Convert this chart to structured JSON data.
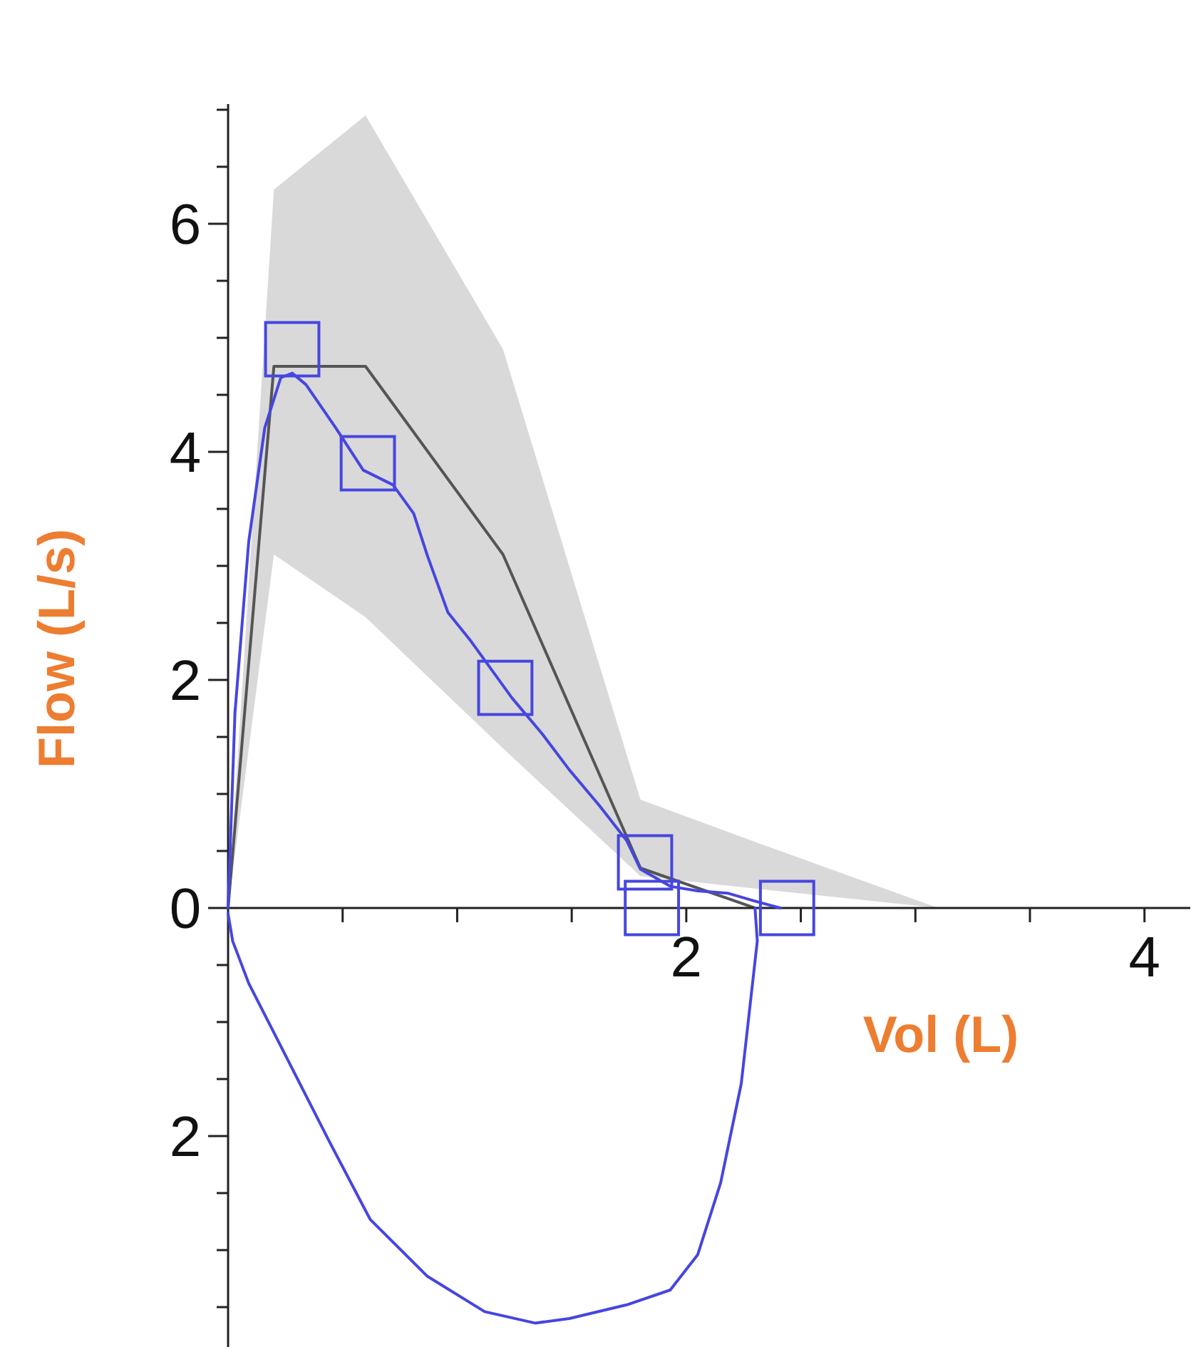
{
  "chart_data": {
    "type": "line",
    "xlabel": "Vol (L)",
    "ylabel": "Flow (L/s)",
    "xlim": [
      0,
      4.2
    ],
    "ylim": [
      -3.85,
      7.05
    ],
    "xticks": [
      {
        "value": 0.5,
        "label": null
      },
      {
        "value": 1,
        "label": null
      },
      {
        "value": 1.5,
        "label": null
      },
      2,
      {
        "value": 2.5,
        "label": null
      },
      {
        "value": 3,
        "label": null
      },
      {
        "value": 3.5,
        "label": null
      },
      4
    ],
    "yticks": [
      {
        "value": -3.5,
        "label": null
      },
      {
        "value": -3,
        "label": null
      },
      {
        "value": -2.5,
        "label": null
      },
      {
        "value": -2,
        "label": "2"
      },
      {
        "value": -1.5,
        "label": null
      },
      {
        "value": -1,
        "label": null
      },
      {
        "value": -0.5,
        "label": null
      },
      0,
      {
        "value": 0.5,
        "label": null
      },
      {
        "value": 1,
        "label": null
      },
      {
        "value": 1.5,
        "label": null
      },
      2,
      {
        "value": 2.5,
        "label": null
      },
      {
        "value": 3,
        "label": null
      },
      {
        "value": 3.5,
        "label": null
      },
      4,
      {
        "value": 4.5,
        "label": null
      },
      {
        "value": 5,
        "label": null
      },
      {
        "value": 5.5,
        "label": null
      },
      6,
      {
        "value": 6.5,
        "label": null
      },
      {
        "value": 7,
        "label": null
      }
    ],
    "series": [
      {
        "color": "#555555",
        "x": [
          0,
          0.2,
          0.6,
          1.2,
          1.8,
          2.3,
          3.1
        ],
        "values": [
          0,
          4.75,
          4.75,
          3.1,
          0.35,
          0,
          null
        ],
        "lower": [
          0,
          3.1,
          2.55,
          1.4,
          0.28,
          0.17,
          0
        ],
        "upper": [
          0,
          6.3,
          6.95,
          4.9,
          0.95,
          0.58,
          0
        ]
      },
      {
        "type": "line",
        "color": "#4646e0",
        "x": [
          0,
          0.03,
          0.09,
          0.16,
          0.23,
          0.28,
          0.34,
          0.47,
          0.59,
          0.72,
          0.81,
          0.87,
          0.96,
          1.06,
          1.15,
          1.24,
          1.37,
          1.49,
          1.62,
          1.74,
          1.8,
          1.93,
          2.05,
          2.18,
          2.3,
          2.41
        ],
        "values": [
          0,
          1.71,
          3.21,
          4.21,
          4.65,
          4.69,
          4.59,
          4.21,
          3.84,
          3.71,
          3.46,
          3.09,
          2.59,
          2.34,
          2.09,
          1.84,
          1.53,
          1.21,
          0.9,
          0.59,
          0.34,
          0.19,
          0.15,
          0.13,
          0.06,
          0
        ]
      },
      {
        "type": "line",
        "color": "#4646e0",
        "x": [
          0,
          0.02,
          0.09,
          0.25,
          0.44,
          0.62,
          0.87,
          1.12,
          1.34,
          1.49,
          1.74,
          1.93,
          2.05,
          2.15,
          2.24,
          2.31,
          2.3
        ],
        "values": [
          -0.05,
          -0.29,
          -0.66,
          -1.29,
          -2.04,
          -2.73,
          -3.23,
          -3.54,
          -3.64,
          -3.6,
          -3.48,
          -3.35,
          -3.04,
          -2.41,
          -1.54,
          -0.29,
          0
        ]
      },
      {
        "type": "scatter",
        "color": "#4646e0",
        "marker": "square",
        "x": [
          0.28,
          0.61,
          1.21,
          1.82,
          1.85,
          2.44
        ],
        "values": [
          4.9,
          3.9,
          1.93,
          0.4,
          0,
          0
        ]
      }
    ]
  }
}
